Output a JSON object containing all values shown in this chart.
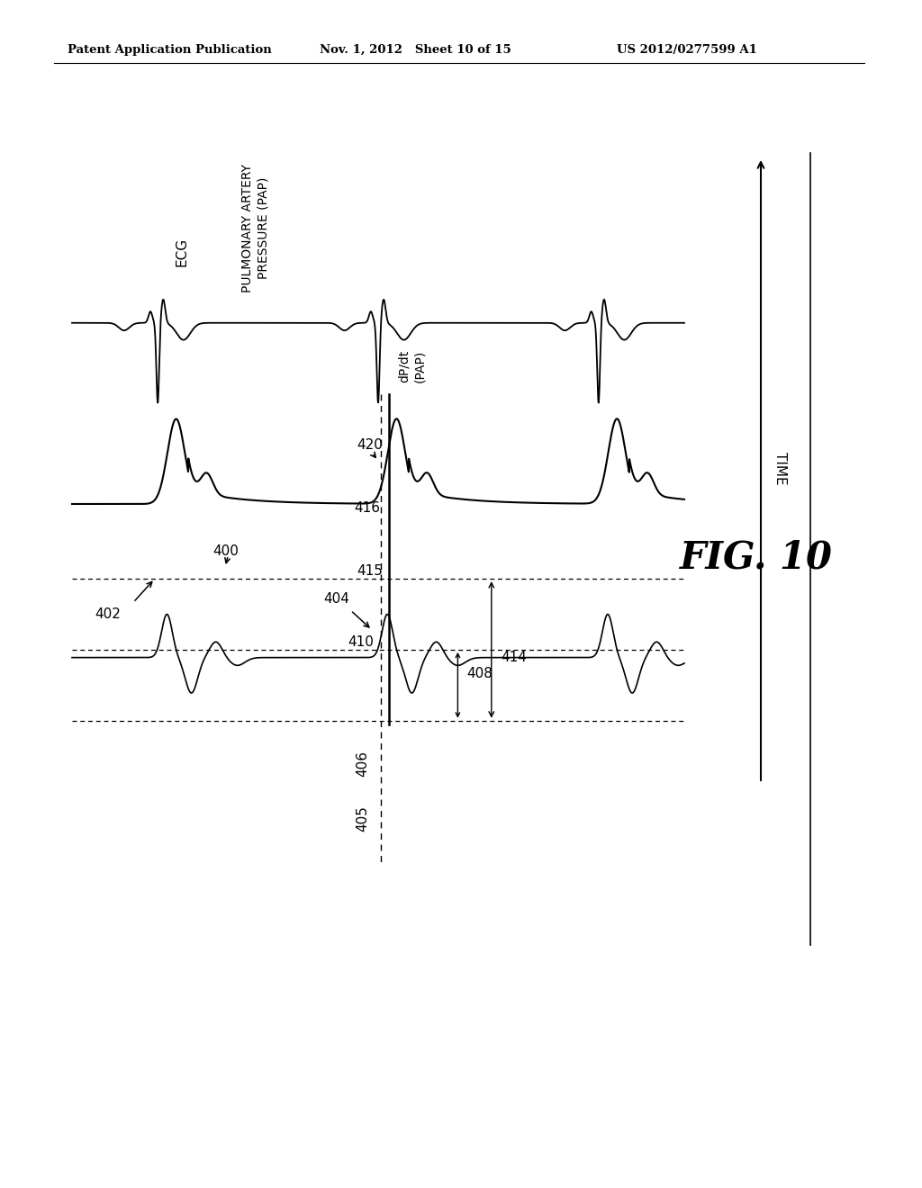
{
  "header_left": "Patent Application Publication",
  "header_mid": "Nov. 1, 2012   Sheet 10 of 15",
  "header_right": "US 2012/0277599 A1",
  "fig_label": "FIG. 10",
  "time_label": "TIME",
  "bg_color": "#ffffff"
}
